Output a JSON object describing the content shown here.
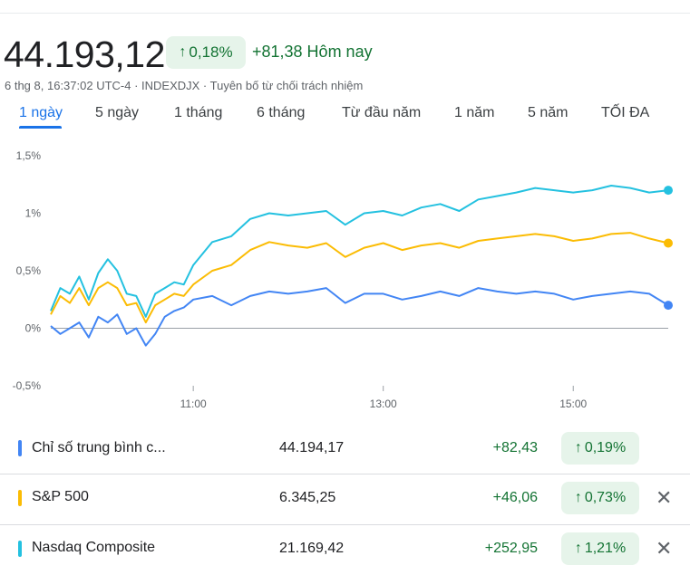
{
  "header": {
    "price": "44.193,12",
    "percent": "0,18%",
    "change": "+81,38 Hôm nay",
    "meta": "6 thg 8, 16:37:02 UTC-4 · INDEXDJX · Tuyên bố từ chối trách nhiệm"
  },
  "tabs": [
    "1 ngày",
    "5 ngày",
    "1 tháng",
    "6 tháng",
    "Từ đầu năm",
    "1 năm",
    "5 năm",
    "TỐI ĐA"
  ],
  "colors": {
    "dow": "#4285f4",
    "sp": "#fbbc04",
    "nasdaq": "#24c1e0",
    "positive": "#137333"
  },
  "chart_data": {
    "type": "line",
    "y_ticks": [
      "1,5%",
      "1%",
      "0,5%",
      "0%",
      "-0,5%"
    ],
    "x_ticks": [
      "11:00",
      "13:00",
      "15:00"
    ],
    "ylim": [
      -0.5,
      1.5
    ],
    "xlim": [
      9.5,
      16.0
    ],
    "series": [
      {
        "name": "Nasdaq Composite",
        "color": "#24c1e0",
        "x": [
          9.5,
          9.6,
          9.7,
          9.8,
          9.9,
          10.0,
          10.1,
          10.2,
          10.3,
          10.4,
          10.5,
          10.6,
          10.7,
          10.8,
          10.9,
          11.0,
          11.2,
          11.4,
          11.6,
          11.8,
          12.0,
          12.2,
          12.4,
          12.6,
          12.8,
          13.0,
          13.2,
          13.4,
          13.6,
          13.8,
          14.0,
          14.2,
          14.4,
          14.6,
          14.8,
          15.0,
          15.2,
          15.4,
          15.6,
          15.8,
          16.0
        ],
        "y": [
          0.15,
          0.35,
          0.3,
          0.45,
          0.25,
          0.48,
          0.6,
          0.5,
          0.3,
          0.28,
          0.1,
          0.3,
          0.35,
          0.4,
          0.38,
          0.55,
          0.75,
          0.8,
          0.95,
          1.0,
          0.98,
          1.0,
          1.02,
          0.9,
          1.0,
          1.02,
          0.98,
          1.05,
          1.08,
          1.02,
          1.12,
          1.15,
          1.18,
          1.22,
          1.2,
          1.18,
          1.2,
          1.24,
          1.22,
          1.18,
          1.2
        ]
      },
      {
        "name": "S&P 500",
        "color": "#fbbc04",
        "x": [
          9.5,
          9.6,
          9.7,
          9.8,
          9.9,
          10.0,
          10.1,
          10.2,
          10.3,
          10.4,
          10.5,
          10.6,
          10.7,
          10.8,
          10.9,
          11.0,
          11.2,
          11.4,
          11.6,
          11.8,
          12.0,
          12.2,
          12.4,
          12.6,
          12.8,
          13.0,
          13.2,
          13.4,
          13.6,
          13.8,
          14.0,
          14.2,
          14.4,
          14.6,
          14.8,
          15.0,
          15.2,
          15.4,
          15.6,
          15.8,
          16.0
        ],
        "y": [
          0.12,
          0.28,
          0.22,
          0.35,
          0.2,
          0.35,
          0.4,
          0.35,
          0.2,
          0.22,
          0.05,
          0.2,
          0.25,
          0.3,
          0.28,
          0.38,
          0.5,
          0.55,
          0.68,
          0.75,
          0.72,
          0.7,
          0.74,
          0.62,
          0.7,
          0.74,
          0.68,
          0.72,
          0.74,
          0.7,
          0.76,
          0.78,
          0.8,
          0.82,
          0.8,
          0.76,
          0.78,
          0.82,
          0.83,
          0.78,
          0.74
        ]
      },
      {
        "name": "Chỉ số trung bình công nghiệp Dow Jones",
        "color": "#4285f4",
        "x": [
          9.5,
          9.6,
          9.7,
          9.8,
          9.9,
          10.0,
          10.1,
          10.2,
          10.3,
          10.4,
          10.5,
          10.6,
          10.7,
          10.8,
          10.9,
          11.0,
          11.2,
          11.4,
          11.6,
          11.8,
          12.0,
          12.2,
          12.4,
          12.6,
          12.8,
          13.0,
          13.2,
          13.4,
          13.6,
          13.8,
          14.0,
          14.2,
          14.4,
          14.6,
          14.8,
          15.0,
          15.2,
          15.4,
          15.6,
          15.8,
          16.0
        ],
        "y": [
          0.02,
          -0.05,
          0.0,
          0.05,
          -0.08,
          0.1,
          0.05,
          0.12,
          -0.05,
          0.0,
          -0.15,
          -0.05,
          0.1,
          0.15,
          0.18,
          0.25,
          0.28,
          0.2,
          0.28,
          0.32,
          0.3,
          0.32,
          0.35,
          0.22,
          0.3,
          0.3,
          0.25,
          0.28,
          0.32,
          0.28,
          0.35,
          0.32,
          0.3,
          0.32,
          0.3,
          0.25,
          0.28,
          0.3,
          0.32,
          0.3,
          0.2
        ]
      }
    ]
  },
  "rows": [
    {
      "name": "Chỉ số trung bình c...",
      "value": "44.194,17",
      "change": "+82,43",
      "percent": "0,19%",
      "color": "#4285f4",
      "close": ""
    },
    {
      "name": "S&P 500",
      "value": "6.345,25",
      "change": "+46,06",
      "percent": "0,73%",
      "color": "#fbbc04",
      "close": "✕"
    },
    {
      "name": "Nasdaq Composite",
      "value": "21.169,42",
      "change": "+252,95",
      "percent": "1,21%",
      "color": "#24c1e0",
      "close": "✕"
    }
  ]
}
